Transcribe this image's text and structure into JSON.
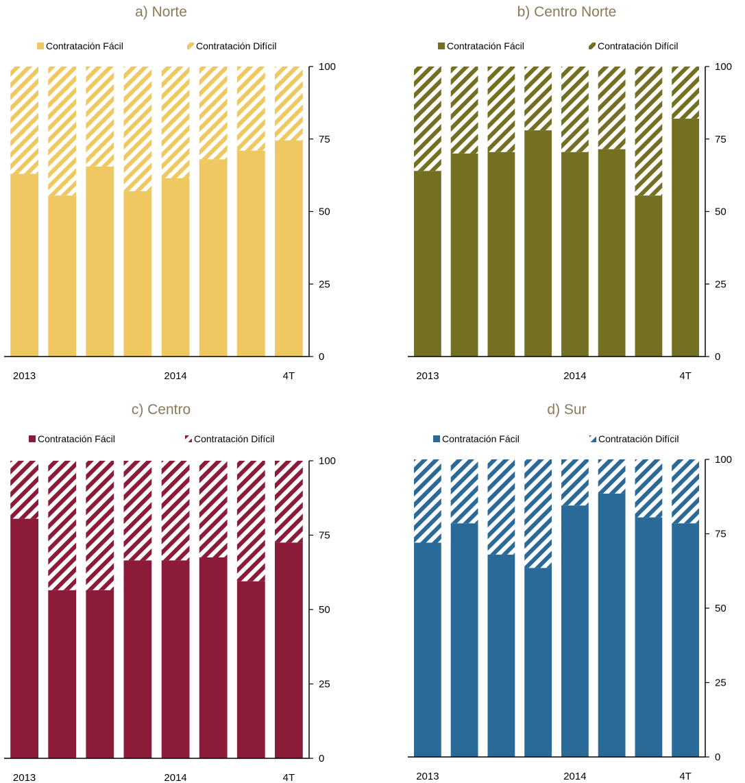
{
  "chart_data": [
    {
      "type": "bar",
      "stacked": true,
      "title": "a) Norte",
      "categories": [
        "2013",
        "",
        "",
        "",
        "2014",
        "",
        "",
        "4T"
      ],
      "series": [
        {
          "name": "Contratación Fácil",
          "values": [
            63,
            55.5,
            65.5,
            57,
            61.5,
            68,
            71,
            74.5
          ]
        },
        {
          "name": "Contratación Difícil",
          "values": [
            37,
            44.5,
            34.5,
            43,
            38.5,
            32,
            29,
            25.5
          ]
        }
      ],
      "colors": {
        "fill": "#f0c862"
      },
      "ylim": [
        0,
        100
      ],
      "yticks": [
        "0",
        "25",
        "50",
        "75",
        "100"
      ],
      "legend": "top"
    },
    {
      "type": "bar",
      "stacked": true,
      "title": "b) Centro Norte",
      "categories": [
        "2013",
        "",
        "",
        "",
        "2014",
        "",
        "",
        "4T"
      ],
      "series": [
        {
          "name": "Contratación Fácil",
          "values": [
            64,
            70,
            70.5,
            78,
            70.5,
            71.5,
            55.5,
            82
          ]
        },
        {
          "name": "Contratación Difícil",
          "values": [
            36,
            30,
            29.5,
            22,
            29.5,
            28.5,
            44.5,
            18
          ]
        }
      ],
      "colors": {
        "fill": "#737022"
      },
      "ylim": [
        0,
        100
      ],
      "yticks": [
        "0",
        "25",
        "50",
        "75",
        "100"
      ],
      "legend": "top"
    },
    {
      "type": "bar",
      "stacked": true,
      "title": "c) Centro",
      "categories": [
        "2013",
        "",
        "",
        "",
        "2014",
        "",
        "",
        "4T"
      ],
      "series": [
        {
          "name": "Contratación Fácil",
          "values": [
            80.5,
            56.5,
            56.5,
            66.5,
            66.5,
            67.5,
            59.5,
            72.5
          ]
        },
        {
          "name": "Contratación Difícil",
          "values": [
            19.5,
            43.5,
            43.5,
            33.5,
            33.5,
            32.5,
            40.5,
            27.5
          ]
        }
      ],
      "colors": {
        "fill": "#8c1b3a"
      },
      "ylim": [
        0,
        100
      ],
      "yticks": [
        "0",
        "25",
        "50",
        "75",
        "100"
      ],
      "legend": "top"
    },
    {
      "type": "bar",
      "stacked": true,
      "title": "d) Sur",
      "categories": [
        "2013",
        "",
        "",
        "",
        "2014",
        "",
        "",
        "4T"
      ],
      "series": [
        {
          "name": "Contratación Fácil",
          "values": [
            72,
            78.5,
            68,
            63.5,
            84.5,
            88.5,
            80.5,
            78.5
          ]
        },
        {
          "name": "Contratación Difícil",
          "values": [
            28,
            21.5,
            32,
            36.5,
            15.5,
            11.5,
            19.5,
            21.5
          ]
        }
      ],
      "colors": {
        "fill": "#2a6a98"
      },
      "ylim": [
        0,
        100
      ],
      "yticks": [
        "0",
        "25",
        "50",
        "75",
        "100"
      ],
      "legend": "top"
    }
  ]
}
